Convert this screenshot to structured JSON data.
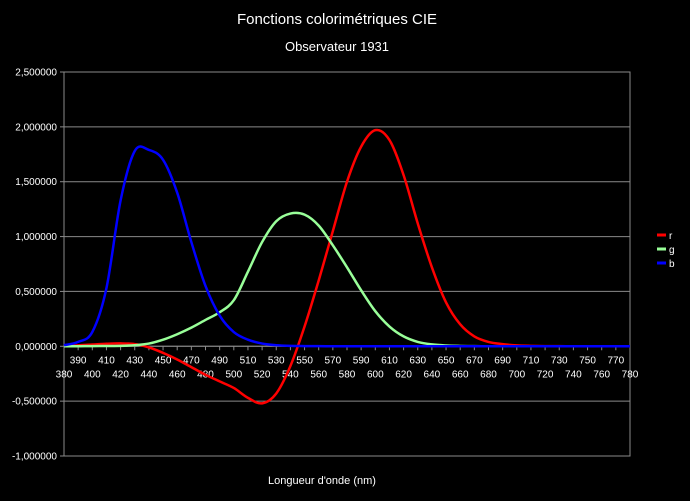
{
  "chart_data": {
    "type": "line",
    "title": "Fonctions colorimétriques CIE",
    "subtitle": "Observateur 1931",
    "xlabel": "Longueur d'onde (nm)",
    "ylabel": "",
    "xlim": [
      380,
      780
    ],
    "ylim": [
      -1.0,
      2.5
    ],
    "grid": true,
    "legend_position": "right",
    "y_ticks": [
      "2,500000",
      "2,000000",
      "1,500000",
      "1,000000",
      "0,500000",
      "0,000000",
      "-0,500000",
      "-1,000000"
    ],
    "y_tick_values": [
      2.5,
      2.0,
      1.5,
      1.0,
      0.5,
      0.0,
      -0.5,
      -1.0
    ],
    "x_ticks_upper": [
      "390",
      "410",
      "430",
      "450",
      "470",
      "490",
      "510",
      "530",
      "550",
      "570",
      "590",
      "610",
      "630",
      "650",
      "670",
      "690",
      "710",
      "730",
      "750",
      "770"
    ],
    "x_ticks_lower": [
      "380",
      "400",
      "420",
      "440",
      "460",
      "480",
      "500",
      "520",
      "540",
      "560",
      "580",
      "600",
      "620",
      "640",
      "660",
      "680",
      "700",
      "720",
      "740",
      "760",
      "780"
    ],
    "x": [
      380,
      390,
      400,
      410,
      420,
      430,
      440,
      450,
      460,
      470,
      480,
      490,
      500,
      510,
      520,
      530,
      540,
      550,
      560,
      570,
      580,
      590,
      600,
      610,
      620,
      630,
      640,
      650,
      660,
      670,
      680,
      690,
      700,
      710,
      720,
      730,
      740,
      750,
      760,
      770,
      780
    ],
    "series": [
      {
        "name": "r",
        "color": "#ff0000",
        "values": [
          0.003,
          0.008,
          0.016,
          0.023,
          0.026,
          0.02,
          -0.01,
          -0.06,
          -0.12,
          -0.19,
          -0.26,
          -0.32,
          -0.38,
          -0.47,
          -0.52,
          -0.43,
          -0.18,
          0.18,
          0.6,
          1.05,
          1.5,
          1.82,
          1.97,
          1.88,
          1.56,
          1.12,
          0.72,
          0.4,
          0.2,
          0.09,
          0.04,
          0.02,
          0.008,
          0.004,
          0.002,
          0.001,
          0.0,
          0.0,
          0.0,
          0.0,
          0.0
        ]
      },
      {
        "name": "g",
        "color": "#99ff99",
        "values": [
          0.0,
          0.0,
          0.002,
          0.003,
          0.004,
          0.01,
          0.025,
          0.06,
          0.11,
          0.17,
          0.24,
          0.31,
          0.42,
          0.68,
          0.95,
          1.14,
          1.21,
          1.2,
          1.1,
          0.92,
          0.72,
          0.51,
          0.32,
          0.18,
          0.09,
          0.04,
          0.017,
          0.007,
          0.003,
          0.001,
          0.0,
          0.0,
          0.0,
          0.0,
          0.0,
          0.0,
          0.0,
          0.0,
          0.0,
          0.0,
          0.0
        ]
      },
      {
        "name": "b",
        "color": "#0000ff",
        "values": [
          0.01,
          0.04,
          0.13,
          0.53,
          1.33,
          1.78,
          1.79,
          1.7,
          1.4,
          0.95,
          0.55,
          0.28,
          0.13,
          0.06,
          0.025,
          0.01,
          0.004,
          0.002,
          0.001,
          0.0,
          0.0,
          0.0,
          0.0,
          0.0,
          0.0,
          0.0,
          0.0,
          0.0,
          0.0,
          0.0,
          0.0,
          0.0,
          0.0,
          0.0,
          0.0,
          0.0,
          0.0,
          0.0,
          0.0,
          0.0,
          0.0
        ]
      }
    ]
  }
}
